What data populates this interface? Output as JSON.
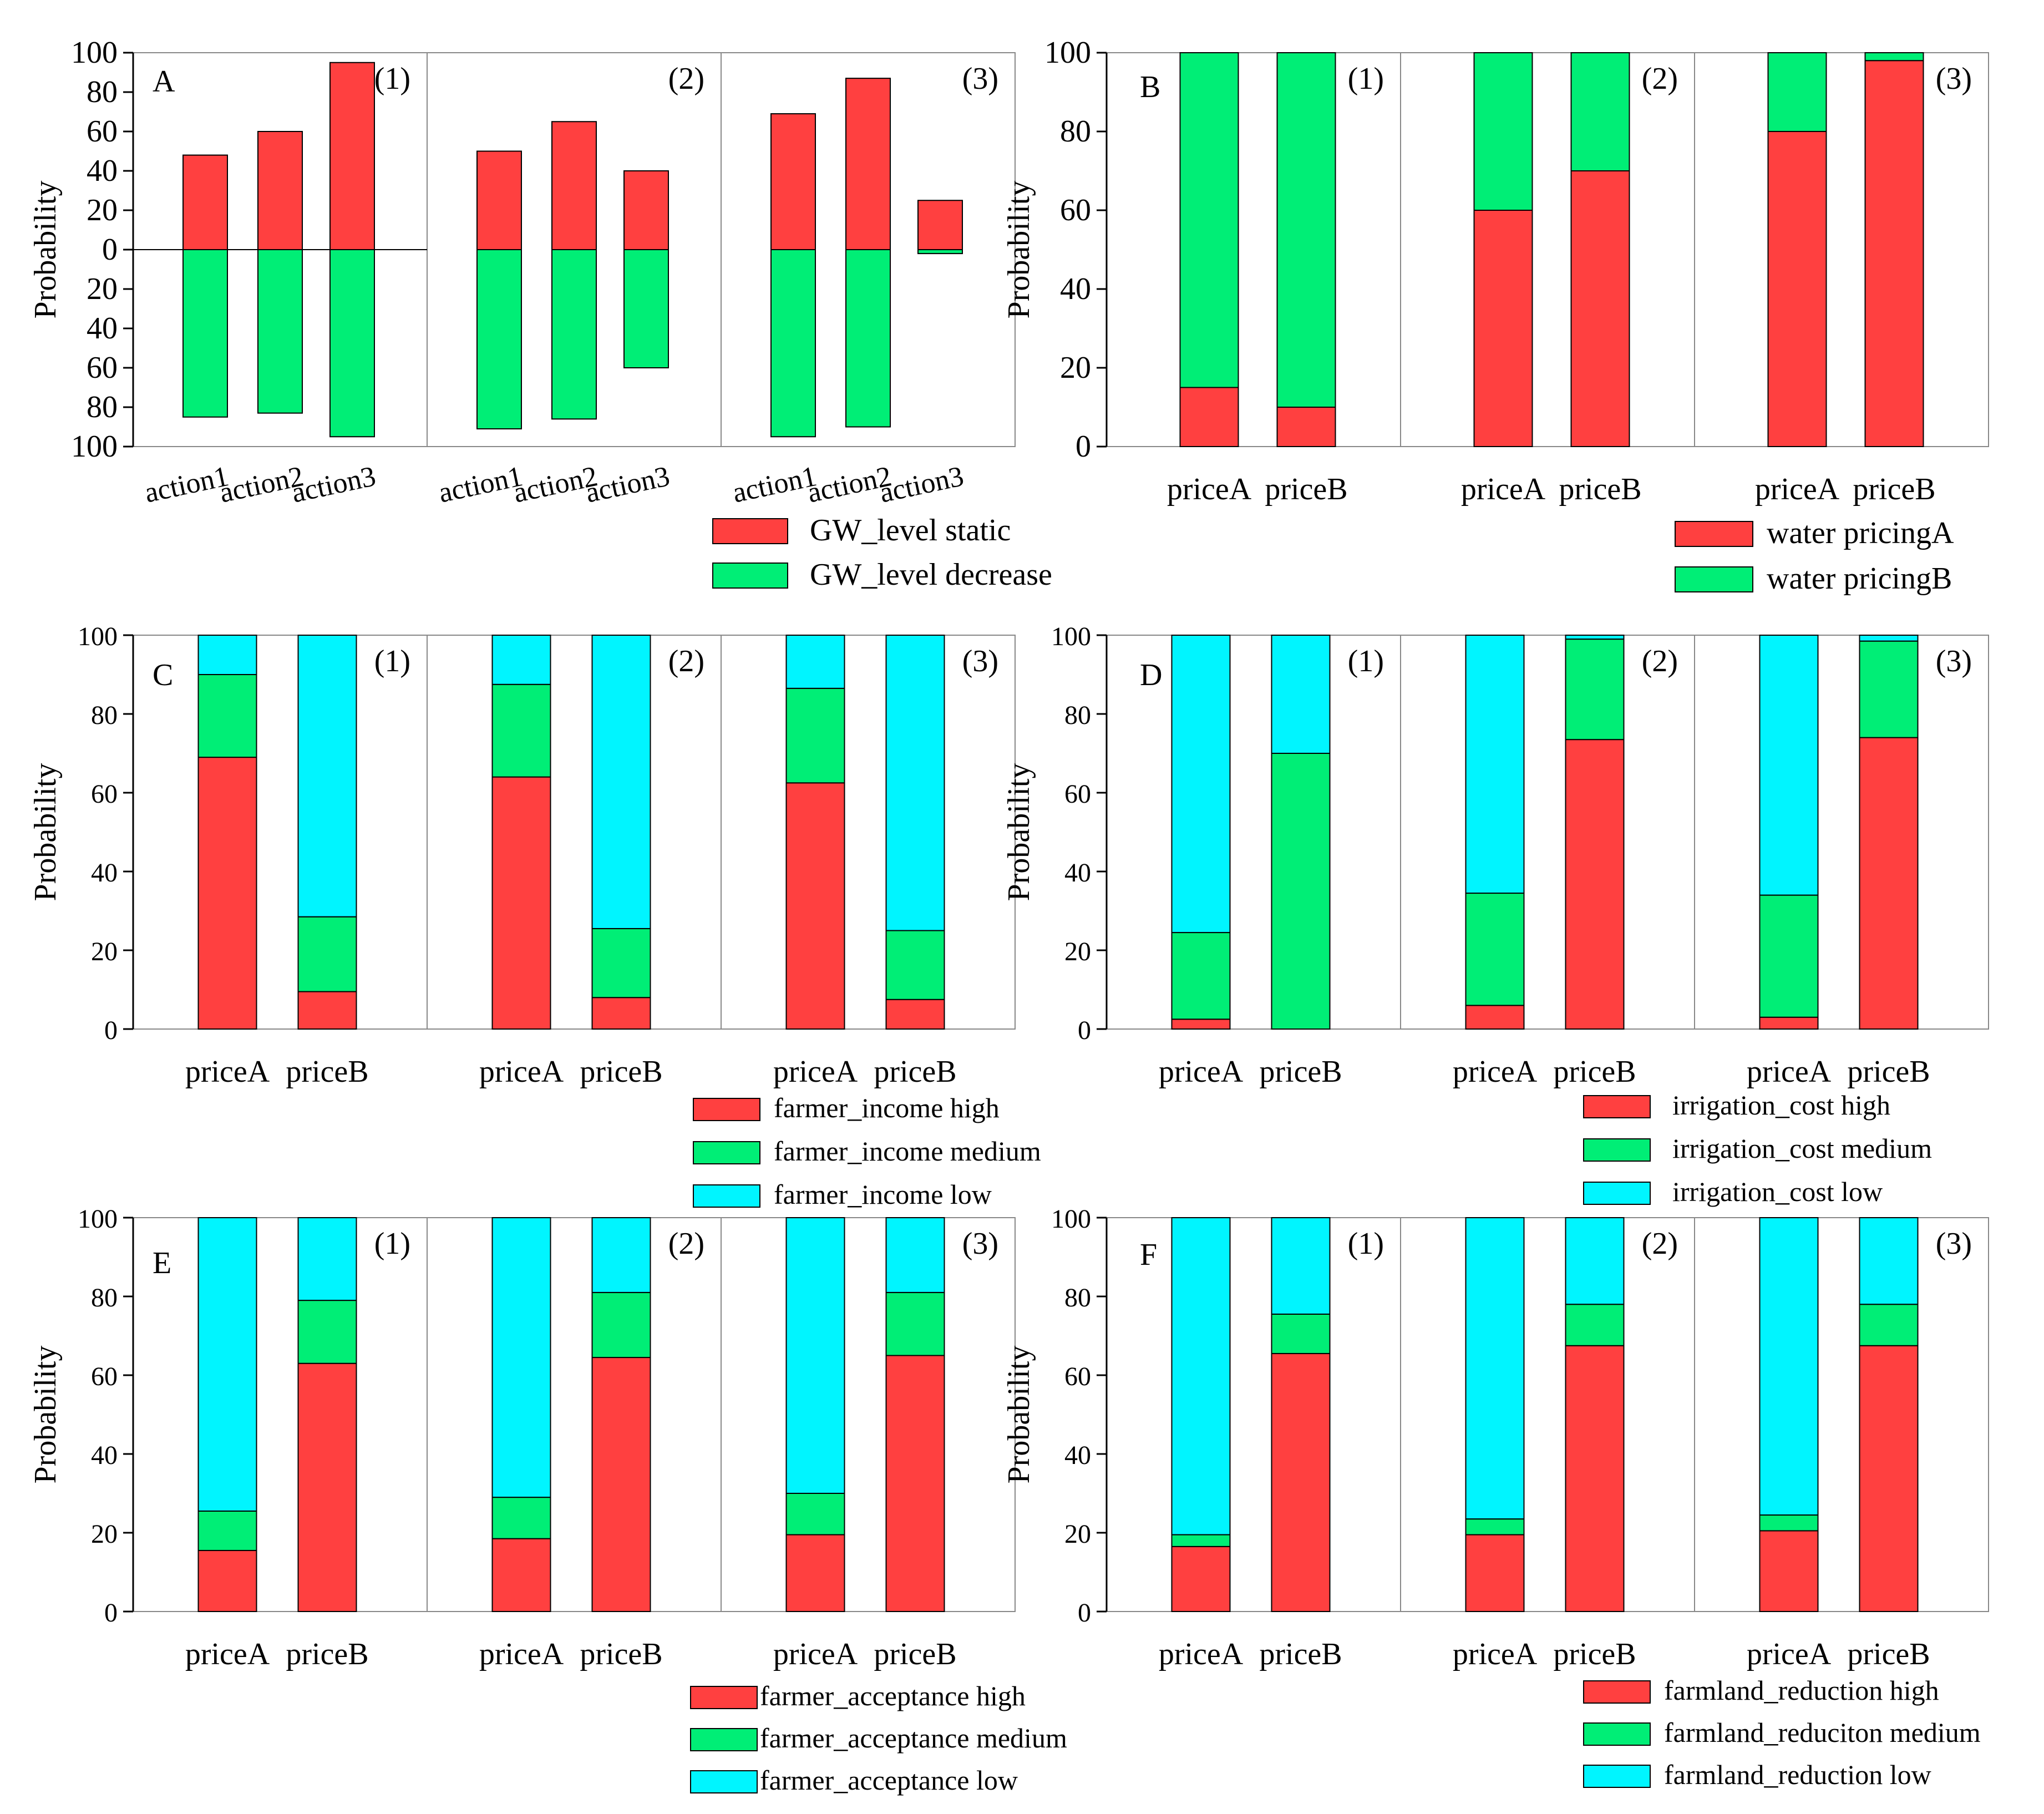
{
  "colors": {
    "red": "#FF4040",
    "green": "#00EE76",
    "cyan": "#00F5FF",
    "axis": "#000000",
    "divider": "#888888"
  },
  "chart_data": [
    {
      "id": "A",
      "type": "bar",
      "letter": "A",
      "ylabel": "Probability",
      "ylim": [
        -100,
        100
      ],
      "yticks": [
        "100",
        "80",
        "60",
        "40",
        "20",
        "0",
        "20",
        "40",
        "60",
        "80",
        "100"
      ],
      "categories": [
        "action1",
        "action2",
        "action3"
      ],
      "panel_labels": [
        "(1)",
        "(2)",
        "(3)"
      ],
      "panels": [
        {
          "up": [
            48,
            60,
            95
          ],
          "down": [
            85,
            83,
            95
          ]
        },
        {
          "up": [
            50,
            65,
            40
          ],
          "down": [
            91,
            86,
            60
          ]
        },
        {
          "up": [
            69,
            87,
            25
          ],
          "down": [
            95,
            90,
            2
          ]
        }
      ],
      "legend": [
        {
          "label": "GW_level static",
          "color": "red"
        },
        {
          "label": "GW_level decrease",
          "color": "green"
        }
      ]
    },
    {
      "id": "B",
      "type": "bar",
      "letter": "B",
      "ylabel": "Probability",
      "ylim": [
        0,
        100
      ],
      "yticks": [
        "0",
        "20",
        "40",
        "60",
        "80",
        "100"
      ],
      "categories": [
        "priceA",
        "priceB"
      ],
      "panel_labels": [
        "(1)",
        "(2)",
        "(3)"
      ],
      "stack_colors": [
        "red",
        "green"
      ],
      "panels": [
        [
          [
            15,
            85
          ],
          [
            10,
            90
          ]
        ],
        [
          [
            60,
            40
          ],
          [
            70,
            30
          ]
        ],
        [
          [
            80,
            20
          ],
          [
            98,
            2
          ]
        ]
      ],
      "legend": [
        {
          "label": "water pricingA",
          "color": "red"
        },
        {
          "label": "water pricingB",
          "color": "green"
        }
      ]
    },
    {
      "id": "C",
      "type": "bar",
      "letter": "C",
      "ylabel": "Probability",
      "ylim": [
        0,
        100
      ],
      "yticks": [
        "0",
        "20",
        "40",
        "60",
        "80",
        "100"
      ],
      "categories": [
        "priceA",
        "priceB"
      ],
      "panel_labels": [
        "(1)",
        "(2)",
        "(3)"
      ],
      "stack_colors": [
        "red",
        "green",
        "cyan"
      ],
      "panels": [
        [
          [
            69,
            21,
            10
          ],
          [
            9.5,
            19,
            71.5
          ]
        ],
        [
          [
            64,
            23.5,
            12.5
          ],
          [
            8,
            17.5,
            74.5
          ]
        ],
        [
          [
            62.5,
            24,
            13.5
          ],
          [
            7.5,
            17.5,
            75
          ]
        ]
      ],
      "legend": [
        {
          "label": "farmer_income high",
          "color": "red"
        },
        {
          "label": "farmer_income medium",
          "color": "green"
        },
        {
          "label": "farmer_income low",
          "color": "cyan"
        }
      ]
    },
    {
      "id": "D",
      "type": "bar",
      "letter": "D",
      "ylabel": "Probability",
      "ylim": [
        0,
        100
      ],
      "yticks": [
        "0",
        "20",
        "40",
        "60",
        "80",
        "100"
      ],
      "categories": [
        "priceA",
        "priceB"
      ],
      "panel_labels": [
        "(1)",
        "(2)",
        "(3)"
      ],
      "stack_colors": [
        "red",
        "green",
        "cyan"
      ],
      "panels": [
        [
          [
            2.5,
            22,
            75.5
          ],
          [
            0,
            70,
            30
          ]
        ],
        [
          [
            6,
            28.5,
            65.5
          ],
          [
            73.5,
            25.5,
            1
          ]
        ],
        [
          [
            3,
            31,
            66
          ],
          [
            74,
            24.5,
            1.5
          ]
        ]
      ],
      "legend": [
        {
          "label": "irrigation_cost high",
          "color": "red"
        },
        {
          "label": "irrigation_cost medium",
          "color": "green"
        },
        {
          "label": "irrigation_cost low",
          "color": "cyan"
        }
      ]
    },
    {
      "id": "E",
      "type": "bar",
      "letter": "E",
      "ylabel": "Probability",
      "ylim": [
        0,
        100
      ],
      "yticks": [
        "0",
        "20",
        "40",
        "60",
        "80",
        "100"
      ],
      "categories": [
        "priceA",
        "priceB"
      ],
      "panel_labels": [
        "(1)",
        "(2)",
        "(3)"
      ],
      "stack_colors": [
        "red",
        "green",
        "cyan"
      ],
      "panels": [
        [
          [
            15.5,
            10,
            74.5
          ],
          [
            63,
            16,
            21
          ]
        ],
        [
          [
            18.5,
            10.5,
            71
          ],
          [
            64.5,
            16.5,
            19
          ]
        ],
        [
          [
            19.5,
            10.5,
            70
          ],
          [
            65,
            16,
            19
          ]
        ]
      ],
      "legend": [
        {
          "label": "farmer_acceptance high",
          "color": "red"
        },
        {
          "label": "farmer_acceptance medium",
          "color": "green"
        },
        {
          "label": "farmer_acceptance low",
          "color": "cyan"
        }
      ]
    },
    {
      "id": "F",
      "type": "bar",
      "letter": "F",
      "ylabel": "Probability",
      "ylim": [
        0,
        100
      ],
      "yticks": [
        "0",
        "20",
        "40",
        "60",
        "80",
        "100"
      ],
      "categories": [
        "priceA",
        "priceB"
      ],
      "panel_labels": [
        "(1)",
        "(2)",
        "(3)"
      ],
      "stack_colors": [
        "red",
        "green",
        "cyan"
      ],
      "panels": [
        [
          [
            16.5,
            3,
            80.5
          ],
          [
            65.5,
            10,
            24.5
          ]
        ],
        [
          [
            19.5,
            4,
            76.5
          ],
          [
            67.5,
            10.5,
            22
          ]
        ],
        [
          [
            20.5,
            4,
            75.5
          ],
          [
            67.5,
            10.5,
            22
          ]
        ]
      ],
      "legend": [
        {
          "label": "farmland_reduction high",
          "color": "red"
        },
        {
          "label": "farmland_reduciton medium",
          "color": "green"
        },
        {
          "label": "farmland_reduction low",
          "color": "cyan"
        }
      ]
    }
  ]
}
